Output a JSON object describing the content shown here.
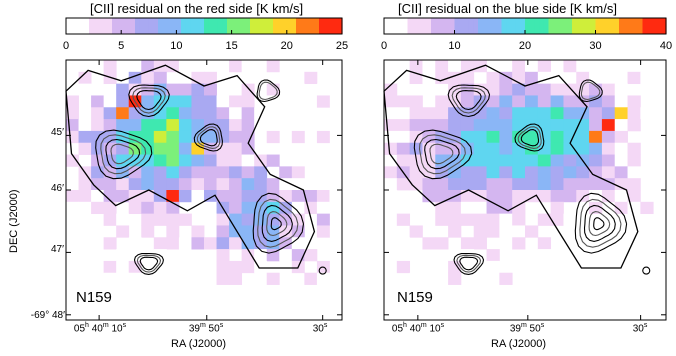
{
  "chart_data": [
    {
      "type": "heatmap",
      "title": "[CII] residual on the red side [K km/s]",
      "colorbar_ticks": [
        "0",
        "5",
        "10",
        "15",
        "20",
        "25"
      ],
      "colorbar_range": [
        0,
        25
      ],
      "panel_label": "N159",
      "y_ticks": [
        "45′",
        "46′",
        "47′",
        "-69° 48′"
      ],
      "x_ticks": [
        "05h 40m 10s",
        "39m 50s",
        "30s"
      ],
      "xlabel": "RA (J2000)",
      "ylabel": "DEC (J2000)",
      "grid_shape": [
        22,
        22
      ],
      "hotspots": [
        {
          "row": 3,
          "col": 5,
          "value": 24
        },
        {
          "row": 4,
          "col": 4,
          "value": 21
        },
        {
          "row": 7,
          "col": 10,
          "value": 20
        },
        {
          "row": 11,
          "col": 8,
          "value": 24
        }
      ]
    },
    {
      "type": "heatmap",
      "title": "[CII] residual on the blue side [K km/s]",
      "colorbar_ticks": [
        "0",
        "10",
        "20",
        "30",
        "40"
      ],
      "colorbar_range": [
        0,
        40
      ],
      "panel_label": "N159",
      "y_ticks": [
        "45′",
        "46′",
        "47′",
        "-69° 48′"
      ],
      "x_ticks": [
        "05h 40m 10s",
        "39m 50s",
        "30s"
      ],
      "xlabel": "RA (J2000)",
      "ylabel": "DEC (J2000)",
      "grid_shape": [
        22,
        22
      ],
      "hotspots": [
        {
          "row": 5,
          "col": 17,
          "value": 38
        },
        {
          "row": 6,
          "col": 16,
          "value": 36
        },
        {
          "row": 4,
          "col": 18,
          "value": 30
        }
      ]
    }
  ],
  "colormap": [
    "#ffffff",
    "#f4d8f6",
    "#d4b6f0",
    "#a9a9f2",
    "#8ab6f6",
    "#5fd6f0",
    "#3fe8b0",
    "#7cf07a",
    "#cfee3a",
    "#ffd12a",
    "#ff7a18",
    "#ff2a10"
  ],
  "contour_color": "#000000"
}
